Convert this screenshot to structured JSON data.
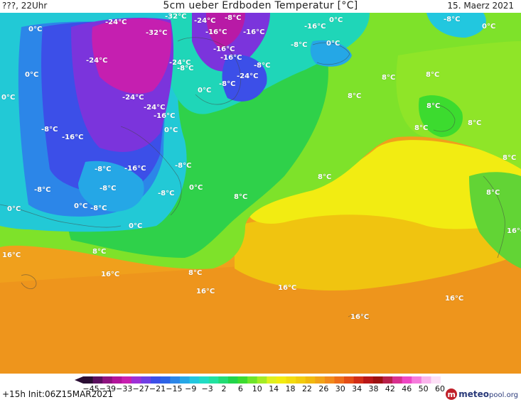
{
  "header": {
    "left": "???, 22Uhr",
    "title": "5cm ueber Erdboden Temperatur [°C]",
    "right": "15. Maerz 2021"
  },
  "footer": {
    "run_info": "+15h  Init:06Z15MAR2021",
    "logo_text": "meteo",
    "logo_text2": "pool.org",
    "logo_mark": "m"
  },
  "legend": {
    "ticks": [
      "−45",
      "−39",
      "−33",
      "−27",
      "−21",
      "−15",
      "−9",
      "−3",
      "2",
      "6",
      "10",
      "14",
      "18",
      "22",
      "26",
      "30",
      "34",
      "38",
      "42",
      "46",
      "50",
      "60"
    ],
    "colors": [
      "#2a0d33",
      "#5a0f5e",
      "#8e127f",
      "#b2149a",
      "#c81fb0",
      "#9d2fd6",
      "#6f3fe4",
      "#3c4fe8",
      "#2c63e6",
      "#2c86e8",
      "#25a7e6",
      "#22c7df",
      "#20dcc4",
      "#21e2a0",
      "#22dc74",
      "#21d44a",
      "#3cdb2f",
      "#6fe52a",
      "#a4ec25",
      "#dff01f",
      "#f2ec10",
      "#f3dc0f",
      "#f2cc0e",
      "#f1b90f",
      "#f2a318",
      "#f28a1c",
      "#ee6d1a",
      "#e44d16",
      "#d22d16",
      "#b81616",
      "#9c1010",
      "#b8204a",
      "#d8308e",
      "#ee46c4",
      "#f67adc",
      "#fab4ec",
      "#fde0f6"
    ]
  },
  "map_labels": [
    {
      "text": "-32°C"
    },
    {
      "text": "-8°C"
    },
    {
      "text": "-24°C"
    },
    {
      "text": "-24°C"
    },
    {
      "text": "-32°C"
    },
    {
      "text": "-16°C"
    },
    {
      "text": "-16°C"
    },
    {
      "text": "-16°C"
    },
    {
      "text": "0°C"
    },
    {
      "text": "0°C"
    },
    {
      "text": "0°C"
    },
    {
      "text": "0°C"
    },
    {
      "text": "-8°C"
    },
    {
      "text": "-8°C"
    },
    {
      "text": "-24°C"
    },
    {
      "text": "-16°C"
    },
    {
      "text": "-24°C"
    },
    {
      "text": "-8°C"
    },
    {
      "text": "-8°C"
    },
    {
      "text": "-16°C"
    },
    {
      "text": "-24°C"
    },
    {
      "text": "0°C"
    },
    {
      "text": "-8°C"
    },
    {
      "text": "0°C"
    },
    {
      "text": "8°C"
    },
    {
      "text": "8°C"
    },
    {
      "text": "8°C"
    },
    {
      "text": "-24°C"
    },
    {
      "text": "-24°C"
    },
    {
      "text": "-16°C"
    },
    {
      "text": "0°C"
    },
    {
      "text": "8°C"
    },
    {
      "text": "8°C"
    },
    {
      "text": "-8°C"
    },
    {
      "text": "-16°C"
    },
    {
      "text": "0°C"
    },
    {
      "text": "8°C"
    },
    {
      "text": "-8°C"
    },
    {
      "text": "-16°C"
    },
    {
      "text": "-8°C"
    },
    {
      "text": "8°C"
    },
    {
      "text": "-8°C"
    },
    {
      "text": "-8°C"
    },
    {
      "text": "0°C"
    },
    {
      "text": "8°C"
    },
    {
      "text": "8°C"
    },
    {
      "text": "0°C"
    },
    {
      "text": "-8°C"
    },
    {
      "text": "0°C"
    },
    {
      "text": "-8°C"
    },
    {
      "text": "0°C"
    },
    {
      "text": "8°C"
    },
    {
      "text": "16°C"
    },
    {
      "text": "8°C"
    },
    {
      "text": "16°C"
    },
    {
      "text": "8°C"
    },
    {
      "text": "16°C"
    },
    {
      "text": "16°C"
    },
    {
      "text": "16°C"
    },
    {
      "text": "16°C"
    },
    {
      "text": "16°C"
    }
  ]
}
